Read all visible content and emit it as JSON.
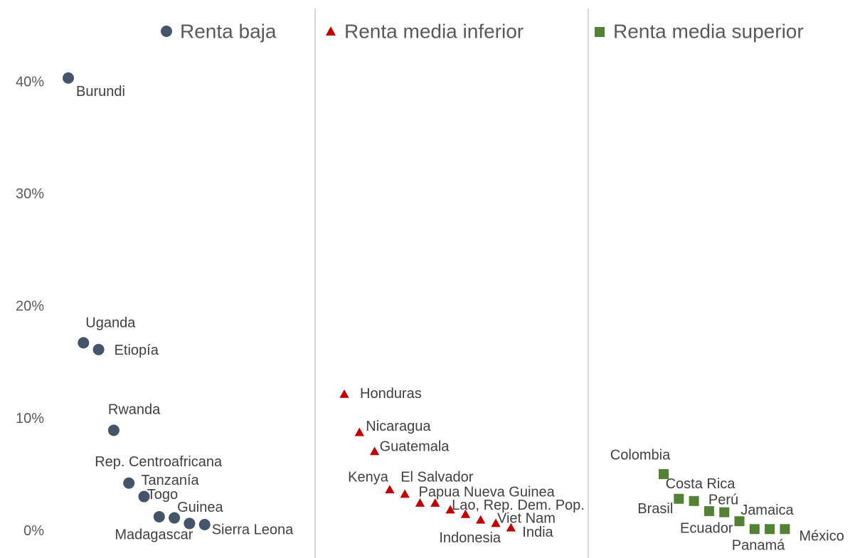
{
  "chart_data": {
    "type": "dot",
    "ylim": [
      -1.3,
      42.6
    ],
    "yticks": [
      {
        "value": 0,
        "label": "0%"
      },
      {
        "value": 10,
        "label": "10%"
      },
      {
        "value": 20,
        "label": "20%"
      },
      {
        "value": 30,
        "label": "30%"
      },
      {
        "value": 40,
        "label": "40%"
      }
    ],
    "series": [
      {
        "name": "Renta baja",
        "color": "#44546a",
        "marker": "circle",
        "categories": [
          "Burundi",
          "Uganda",
          "Etiopía",
          "Rwanda",
          "Rep. Centroafricana",
          "Tanzanía",
          "Togo",
          "Guinea",
          "Madagascar",
          "Sierra Leona"
        ],
        "values": [
          40.4,
          16.8,
          16.2,
          9.0,
          4.3,
          3.1,
          1.3,
          1.2,
          0.7,
          0.6
        ]
      },
      {
        "name": "Renta media inferior",
        "color": "#c00000",
        "marker": "triangle",
        "categories": [
          "Honduras",
          "Nicaragua",
          "Guatemala",
          "Kenya",
          "El Salvador",
          "Papua Nueva Guinea",
          null,
          "Lao, Rep. Dem. Pop.",
          null,
          "Indonesia",
          "Viet Nam",
          "India"
        ],
        "values": [
          12.2,
          8.8,
          7.1,
          3.7,
          3.3,
          2.5,
          2.5,
          1.9,
          1.5,
          1.0,
          0.7,
          0.3
        ]
      },
      {
        "name": "Renta media superior",
        "color": "#548235",
        "marker": "square",
        "categories": [
          "Colombia",
          "Brasil",
          "Costa Rica",
          "Perú",
          "Jamaica",
          "Ecuador",
          "Panamá",
          null,
          "México"
        ],
        "values": [
          5.1,
          2.9,
          2.7,
          1.8,
          1.7,
          0.9,
          0.2,
          0.2,
          0.2
        ]
      }
    ]
  }
}
